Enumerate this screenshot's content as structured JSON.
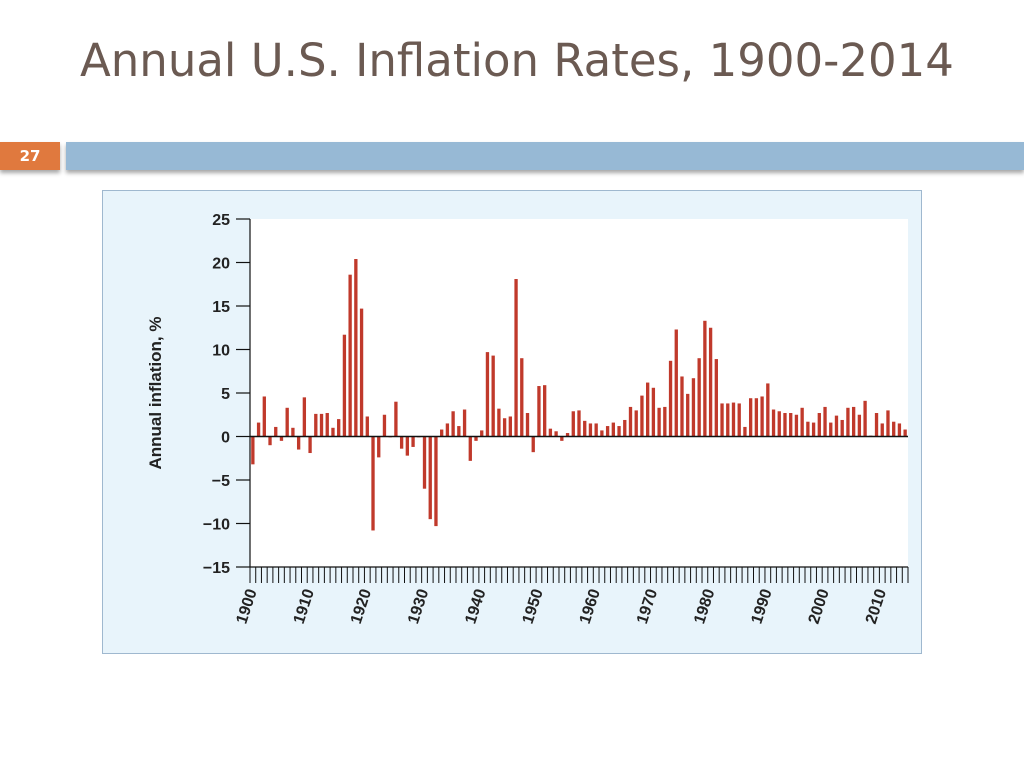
{
  "slide": {
    "title": "Annual U.S. Inflation Rates, 1900-2014",
    "number": "27"
  },
  "colors": {
    "title": "#6b5a52",
    "accent_orange": "#e0793e",
    "accent_blue": "#97b9d5",
    "chart_background": "#e8f4fb",
    "bar": "#c0392b"
  },
  "chart_data": {
    "type": "bar",
    "title": "",
    "xlabel": "",
    "ylabel": "Annual inflation, %",
    "ylim": [
      -15,
      25
    ],
    "yticks": [
      25,
      20,
      15,
      10,
      5,
      0,
      -5,
      -10,
      -15
    ],
    "ytick_labels": [
      "25",
      "20",
      "15",
      "10",
      "5",
      "0",
      "−5",
      "−10",
      "−15"
    ],
    "xtick_labels": [
      "1900",
      "1910",
      "1920",
      "1930",
      "1940",
      "1950",
      "1960",
      "1970",
      "1980",
      "1990",
      "2000",
      "2010"
    ],
    "grid": false,
    "legend": "none",
    "years": [
      1900,
      1901,
      1902,
      1903,
      1904,
      1905,
      1906,
      1907,
      1908,
      1909,
      1910,
      1911,
      1912,
      1913,
      1914,
      1915,
      1916,
      1917,
      1918,
      1919,
      1920,
      1921,
      1922,
      1923,
      1924,
      1925,
      1926,
      1927,
      1928,
      1929,
      1930,
      1931,
      1932,
      1933,
      1934,
      1935,
      1936,
      1937,
      1938,
      1939,
      1940,
      1941,
      1942,
      1943,
      1944,
      1945,
      1946,
      1947,
      1948,
      1949,
      1950,
      1951,
      1952,
      1953,
      1954,
      1955,
      1956,
      1957,
      1958,
      1959,
      1960,
      1961,
      1962,
      1963,
      1964,
      1965,
      1966,
      1967,
      1968,
      1969,
      1970,
      1971,
      1972,
      1973,
      1974,
      1975,
      1976,
      1977,
      1978,
      1979,
      1980,
      1981,
      1982,
      1983,
      1984,
      1985,
      1986,
      1987,
      1988,
      1989,
      1990,
      1991,
      1992,
      1993,
      1994,
      1995,
      1996,
      1997,
      1998,
      1999,
      2000,
      2001,
      2002,
      2003,
      2004,
      2005,
      2006,
      2007,
      2008,
      2009,
      2010,
      2011,
      2012,
      2013,
      2014
    ],
    "values": [
      -3.2,
      1.6,
      4.6,
      -1.0,
      1.1,
      -0.5,
      3.3,
      1.0,
      -1.5,
      4.5,
      -1.9,
      2.6,
      2.6,
      2.7,
      1.0,
      2.0,
      11.7,
      18.6,
      20.4,
      14.7,
      2.3,
      -10.8,
      -2.4,
      2.5,
      0.0,
      4.0,
      -1.4,
      -2.2,
      -1.2,
      0.0,
      -6.0,
      -9.5,
      -10.3,
      0.8,
      1.5,
      2.9,
      1.2,
      3.1,
      -2.8,
      -0.5,
      0.7,
      9.7,
      9.3,
      3.2,
      2.1,
      2.3,
      18.1,
      9.0,
      2.7,
      -1.8,
      5.8,
      5.9,
      0.9,
      0.6,
      -0.5,
      0.4,
      2.9,
      3.0,
      1.8,
      1.5,
      1.5,
      0.7,
      1.2,
      1.6,
      1.2,
      1.9,
      3.4,
      3.0,
      4.7,
      6.2,
      5.6,
      3.3,
      3.4,
      8.7,
      12.3,
      6.9,
      4.9,
      6.7,
      9.0,
      13.3,
      12.5,
      8.9,
      3.8,
      3.8,
      3.9,
      3.8,
      1.1,
      4.4,
      4.4,
      4.6,
      6.1,
      3.1,
      2.9,
      2.7,
      2.7,
      2.5,
      3.3,
      1.7,
      1.6,
      2.7,
      3.4,
      1.6,
      2.4,
      1.9,
      3.3,
      3.4,
      2.5,
      4.1,
      0.1,
      2.7,
      1.5,
      3.0,
      1.7,
      1.5,
      0.8
    ]
  }
}
